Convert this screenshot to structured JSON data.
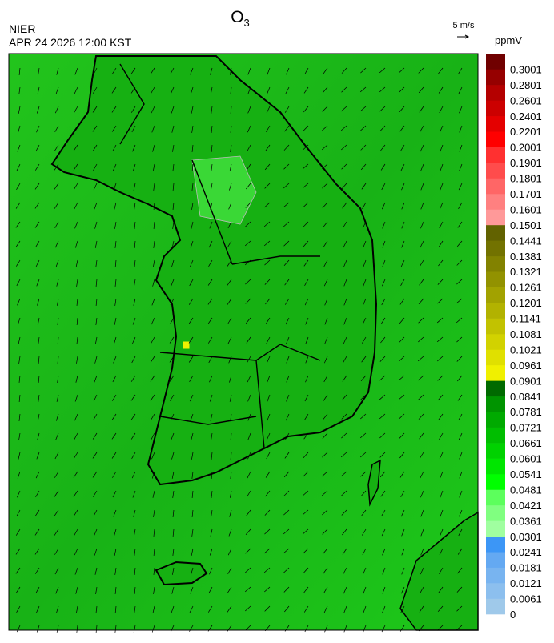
{
  "header": {
    "title": {
      "main": "O",
      "sub": "3"
    },
    "agency": "NIER",
    "time": "APR 24 2026 12:00 KST",
    "wind_scale": "5 m/s",
    "unit": "ppmV"
  },
  "colorbar": {
    "labels": [
      "0",
      "0.0061",
      "0.0121",
      "0.0181",
      "0.0241",
      "0.0301",
      "0.0361",
      "0.0421",
      "0.0481",
      "0.0541",
      "0.0601",
      "0.0661",
      "0.0721",
      "0.0781",
      "0.0841",
      "0.0901",
      "0.0961",
      "0.1021",
      "0.1081",
      "0.1141",
      "0.1201",
      "0.1261",
      "0.1321",
      "0.1381",
      "0.1441",
      "0.1501",
      "0.1601",
      "0.1701",
      "0.1801",
      "0.1901",
      "0.2001",
      "0.2201",
      "0.2401",
      "0.2601",
      "0.2801",
      "0.3001"
    ],
    "colors": [
      "#9fc9ea",
      "#8cbfee",
      "#78b4f0",
      "#64a9f2",
      "#3c96f6",
      "#a0ffa0",
      "#80ff80",
      "#5cff5c",
      "#00ff00",
      "#00e600",
      "#00d200",
      "#00be00",
      "#00aa00",
      "#009400",
      "#006a00",
      "#f0f000",
      "#e0e000",
      "#d2d200",
      "#c2c200",
      "#b2b200",
      "#a2a200",
      "#929200",
      "#828200",
      "#727200",
      "#626200",
      "#ff9999",
      "#ff8080",
      "#ff6666",
      "#ff4c4c",
      "#ff3030",
      "#ff0000",
      "#e40000",
      "#cc0000",
      "#b40000",
      "#960000",
      "#700000"
    ]
  }
}
